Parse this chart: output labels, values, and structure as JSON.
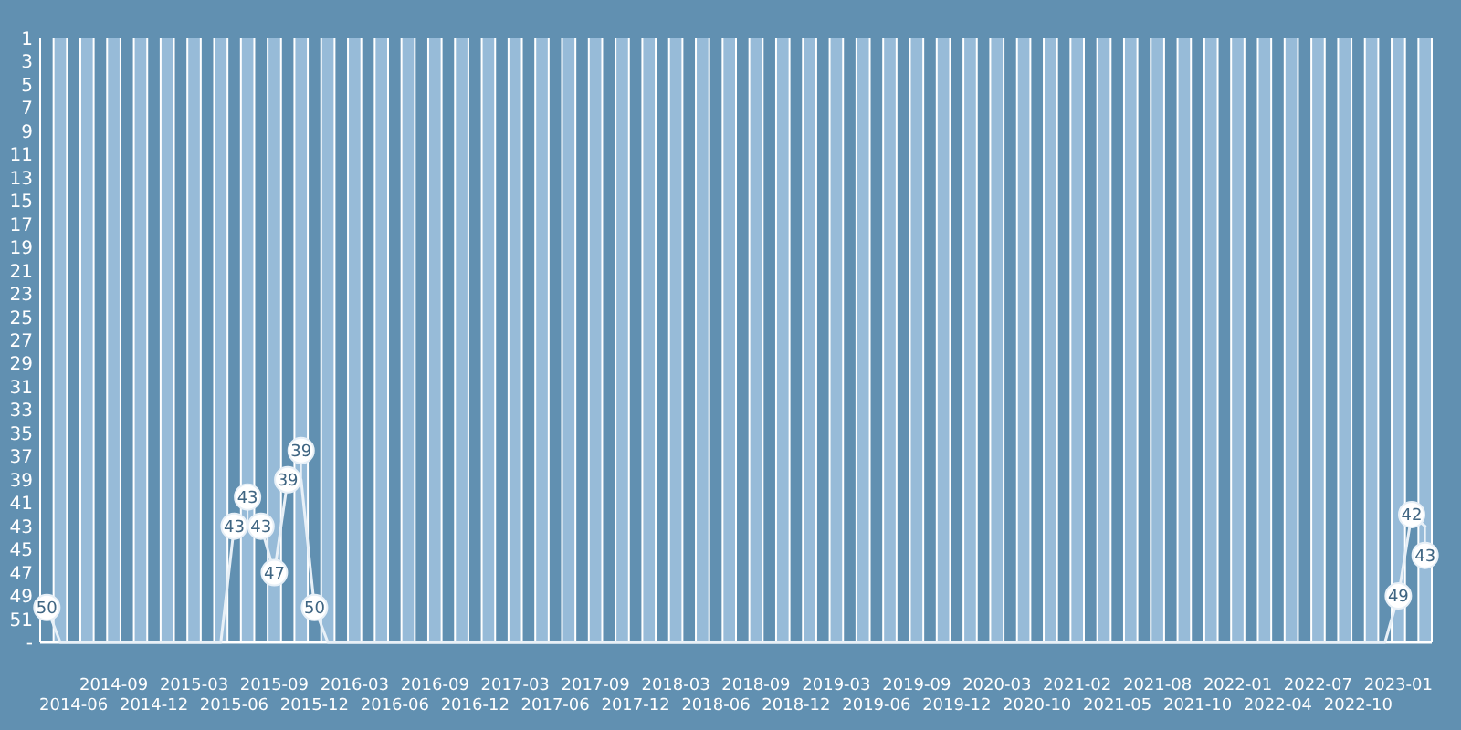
{
  "chart_data": {
    "type": "line",
    "categories": [
      null,
      null,
      "2014-06",
      null,
      null,
      "2014-09",
      null,
      null,
      "2014-12",
      null,
      null,
      "2015-03",
      null,
      null,
      "2015-06",
      null,
      null,
      "2015-09",
      null,
      null,
      "2015-12",
      null,
      null,
      "2016-03",
      null,
      null,
      "2016-06",
      null,
      null,
      "2016-09",
      null,
      null,
      "2016-12",
      null,
      null,
      "2017-03",
      null,
      null,
      "2017-06",
      null,
      null,
      "2017-09",
      null,
      null,
      "2017-12",
      null,
      null,
      "2018-03",
      null,
      null,
      "2018-06",
      null,
      null,
      "2018-09",
      null,
      null,
      "2018-12",
      null,
      null,
      "2019-03",
      null,
      null,
      "2019-06",
      null,
      null,
      "2019-09",
      null,
      null,
      "2019-12",
      null,
      null,
      "2020-03",
      null,
      null,
      "2020-10",
      null,
      null,
      "2021-02",
      null,
      null,
      "2021-05",
      null,
      null,
      "2021-08",
      null,
      null,
      "2021-10",
      null,
      null,
      "2022-01",
      null,
      null,
      "2022-04",
      null,
      null,
      "2022-07",
      null,
      null,
      "2022-10",
      null,
      null,
      "2023-01",
      null,
      null
    ],
    "series": [
      {
        "color": "#e8f0f7",
        "values": [
          50,
          53,
          53,
          53,
          53,
          53,
          53,
          53,
          53,
          53,
          53,
          53,
          53,
          53,
          43,
          43,
          43,
          47,
          39,
          39,
          50,
          53,
          53,
          53,
          53,
          53,
          53,
          53,
          53,
          53,
          53,
          53,
          53,
          53,
          53,
          53,
          53,
          53,
          53,
          53,
          53,
          53,
          53,
          53,
          53,
          53,
          53,
          53,
          53,
          53,
          53,
          53,
          53,
          53,
          53,
          53,
          53,
          53,
          53,
          53,
          53,
          53,
          53,
          53,
          53,
          53,
          53,
          53,
          53,
          53,
          53,
          53,
          53,
          53,
          53,
          53,
          53,
          53,
          53,
          53,
          53,
          53,
          53,
          53,
          53,
          53,
          53,
          53,
          53,
          53,
          53,
          53,
          53,
          53,
          53,
          53,
          53,
          53,
          53,
          53,
          53,
          49,
          42,
          43
        ],
        "value_labels": [
          "50",
          null,
          null,
          null,
          null,
          null,
          null,
          null,
          null,
          null,
          null,
          null,
          null,
          null,
          "43",
          "43",
          "43",
          "47",
          "39",
          "39",
          "50",
          null,
          null,
          null,
          null,
          null,
          null,
          null,
          null,
          null,
          null,
          null,
          null,
          null,
          null,
          null,
          null,
          null,
          null,
          null,
          null,
          null,
          null,
          null,
          null,
          null,
          null,
          null,
          null,
          null,
          null,
          null,
          null,
          null,
          null,
          null,
          null,
          null,
          null,
          null,
          null,
          null,
          null,
          null,
          null,
          null,
          null,
          null,
          null,
          null,
          null,
          null,
          null,
          null,
          null,
          null,
          null,
          null,
          null,
          null,
          null,
          null,
          null,
          null,
          null,
          null,
          null,
          null,
          null,
          null,
          null,
          null,
          null,
          null,
          null,
          null,
          null,
          null,
          null,
          null,
          null,
          "49",
          "42",
          "43"
        ]
      }
    ],
    "ylim": [
      53,
      1
    ],
    "yticks": [
      1,
      3,
      5,
      7,
      9,
      11,
      13,
      15,
      17,
      19,
      21,
      23,
      25,
      27,
      29,
      31,
      33,
      35,
      37,
      39,
      41,
      43,
      45,
      47,
      49,
      51,
      {
        "value": 53,
        "label": "-"
      }
    ],
    "grid": "x",
    "line_style": "solid"
  }
}
